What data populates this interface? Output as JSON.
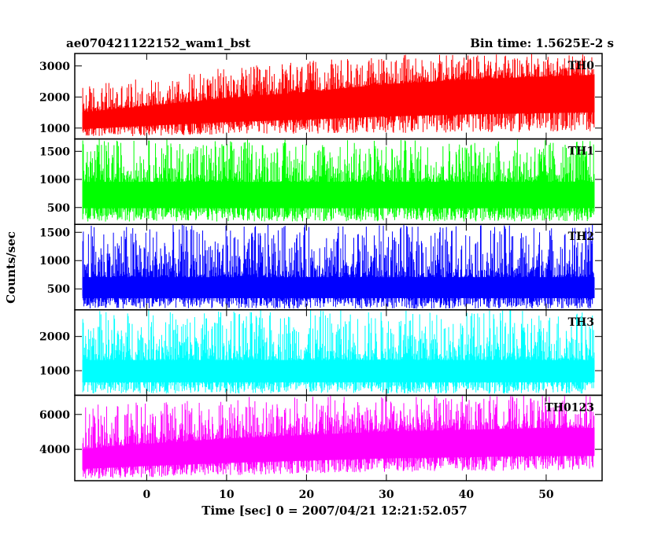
{
  "chart_data": {
    "type": "line",
    "title": "ae070421122152_wam1_bst",
    "subtitle": "Bin time: 1.5625E-2 s",
    "xlabel": "Time [sec] 0 = 2007/04/21 12:21:52.057",
    "ylabel": "Counts/sec",
    "xlim": [
      -9,
      57
    ],
    "data_xlim": [
      -8,
      56
    ],
    "xticks": [
      0,
      10,
      20,
      30,
      40,
      50
    ],
    "xtick_labels": [
      "0",
      "10",
      "20",
      "30",
      "40",
      "50"
    ],
    "grid": false,
    "panels": [
      {
        "name": "TH0",
        "color": "#ff0000",
        "ylim": [
          650,
          3400
        ],
        "yticks": [
          1000,
          2000,
          3000
        ],
        "ytick_labels": [
          "1000",
          "2000",
          "3000"
        ],
        "envelope": {
          "x": [
            -8,
            0,
            10,
            20,
            30,
            40,
            50,
            56
          ],
          "upper": [
            2400,
            2600,
            2950,
            3150,
            3350,
            3400,
            3400,
            3400
          ],
          "lower": [
            700,
            750,
            800,
            820,
            840,
            860,
            870,
            880
          ],
          "typical": [
            1500,
            1700,
            1950,
            2150,
            2400,
            2550,
            2650,
            2700
          ]
        }
      },
      {
        "name": "TH1",
        "color": "#00ff00",
        "ylim": [
          200,
          1720
        ],
        "yticks": [
          500,
          1000,
          1500
        ],
        "ytick_labels": [
          "500",
          "1000",
          "1500"
        ],
        "envelope": {
          "x": [
            -8,
            56
          ],
          "upper": [
            1720,
            1720
          ],
          "lower": [
            250,
            250
          ],
          "typical": [
            950,
            950
          ]
        }
      },
      {
        "name": "TH2",
        "color": "#0000ff",
        "ylim": [
          130,
          1640
        ],
        "yticks": [
          500,
          1000,
          1500
        ],
        "ytick_labels": [
          "500",
          "1000",
          "1500"
        ],
        "envelope": {
          "x": [
            -8,
            56
          ],
          "upper": [
            1640,
            1640
          ],
          "lower": [
            150,
            150
          ],
          "typical": [
            700,
            700
          ]
        }
      },
      {
        "name": "TH3",
        "color": "#00ffff",
        "ylim": [
          280,
          2780
        ],
        "yticks": [
          1000,
          2000
        ],
        "ytick_labels": [
          "1000",
          "2000"
        ],
        "envelope": {
          "x": [
            -8,
            56
          ],
          "upper": [
            2780,
            2780
          ],
          "lower": [
            330,
            330
          ],
          "typical": [
            1300,
            1300
          ]
        }
      },
      {
        "name": "TH0123",
        "color": "#ff00ff",
        "ylim": [
          2200,
          7100
        ],
        "yticks": [
          4000,
          6000
        ],
        "ytick_labels": [
          "4000",
          "6000"
        ],
        "envelope": {
          "x": [
            -8,
            0,
            10,
            20,
            30,
            40,
            50,
            56
          ],
          "upper": [
            6500,
            6800,
            7000,
            7100,
            7100,
            7100,
            7100,
            7100
          ],
          "lower": [
            2300,
            2400,
            2500,
            2600,
            2700,
            2750,
            2800,
            2800
          ],
          "typical": [
            4000,
            4300,
            4600,
            4800,
            5000,
            5100,
            5200,
            5200
          ]
        }
      }
    ]
  }
}
